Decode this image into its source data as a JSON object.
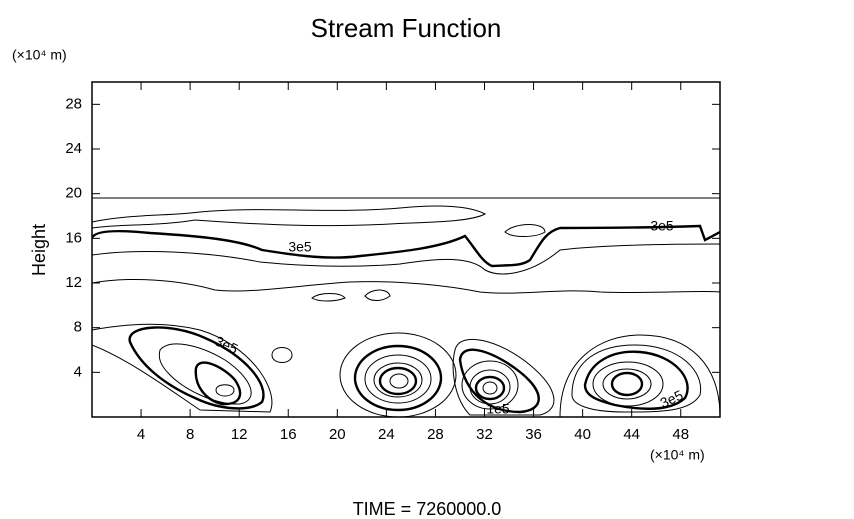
{
  "chart_data": {
    "type": "contour",
    "title": "Stream Function",
    "y_unit": "(×10⁴ m)",
    "x_unit": "(×10⁴ m)",
    "y_label": "Height",
    "footer": "TIME = 7260000.0",
    "xlim": [
      0,
      51.2
    ],
    "ylim": [
      0,
      30
    ],
    "xticks": [
      4,
      8,
      12,
      16,
      20,
      24,
      28,
      32,
      36,
      40,
      44,
      48
    ],
    "yticks": [
      4,
      8,
      12,
      16,
      20,
      24,
      28
    ],
    "contour_labels": [
      "3e5",
      "3e5",
      "3e5",
      "3e5",
      "1e5"
    ]
  }
}
